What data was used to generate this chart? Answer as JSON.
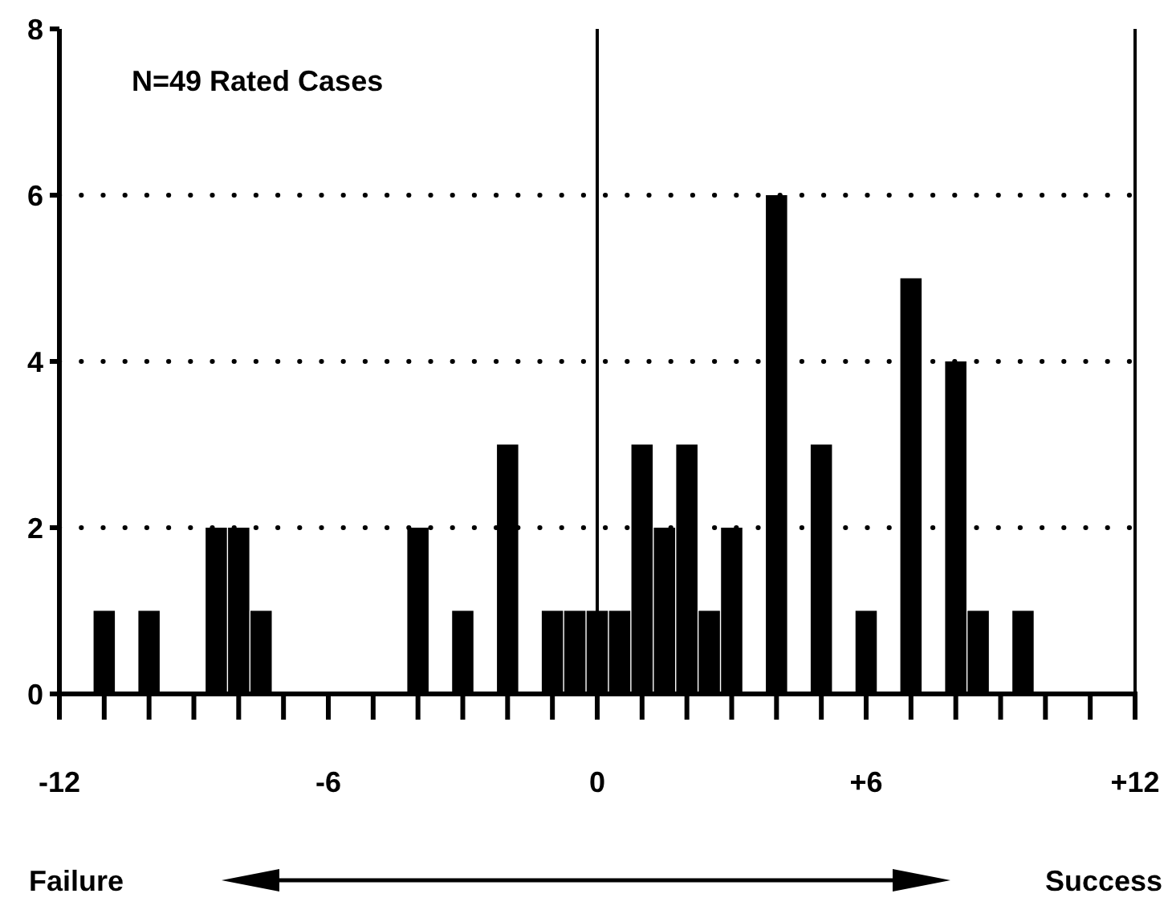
{
  "chart_data": {
    "type": "bar",
    "x": [
      -11,
      -10,
      -8.5,
      -8,
      -7.5,
      -4,
      -3,
      -2,
      -1,
      -0.5,
      0,
      0.5,
      1,
      1.5,
      2,
      2.5,
      3,
      4,
      5,
      6,
      7,
      8,
      8.5,
      9.5
    ],
    "values": [
      1,
      1,
      2,
      2,
      1,
      2,
      1,
      3,
      1,
      1,
      1,
      1,
      3,
      2,
      3,
      1,
      2,
      6,
      3,
      1,
      5,
      4,
      1,
      1
    ],
    "color": "#000000",
    "xlim": [
      -12,
      12
    ],
    "xticks": [
      {
        "value": -12,
        "label": "-12"
      },
      {
        "value": -11,
        "label": null
      },
      {
        "value": -10,
        "label": null
      },
      {
        "value": -9,
        "label": null
      },
      {
        "value": -8,
        "label": null
      },
      {
        "value": -7,
        "label": null
      },
      {
        "value": -6,
        "label": "-6"
      },
      {
        "value": -5,
        "label": null
      },
      {
        "value": -4,
        "label": null
      },
      {
        "value": -3,
        "label": null
      },
      {
        "value": -2,
        "label": null
      },
      {
        "value": -1,
        "label": null
      },
      0,
      {
        "value": 1,
        "label": null
      },
      {
        "value": 2,
        "label": null
      },
      {
        "value": 3,
        "label": null
      },
      {
        "value": 4,
        "label": null
      },
      {
        "value": 5,
        "label": null
      },
      {
        "value": 6,
        "label": "+6"
      },
      {
        "value": 7,
        "label": null
      },
      {
        "value": 8,
        "label": null
      },
      {
        "value": 9,
        "label": null
      },
      {
        "value": 10,
        "label": null
      },
      {
        "value": 11,
        "label": null
      },
      {
        "value": 12,
        "label": "+12"
      }
    ],
    "ylim": [
      0,
      8
    ],
    "yticks": [
      0,
      2,
      4,
      6,
      8
    ],
    "grid": "y",
    "ref_lines": [
      {
        "axis": "x",
        "value": 0
      }
    ],
    "annotations": [
      "N=49 Rated Cases",
      "Failure",
      "Success"
    ]
  }
}
